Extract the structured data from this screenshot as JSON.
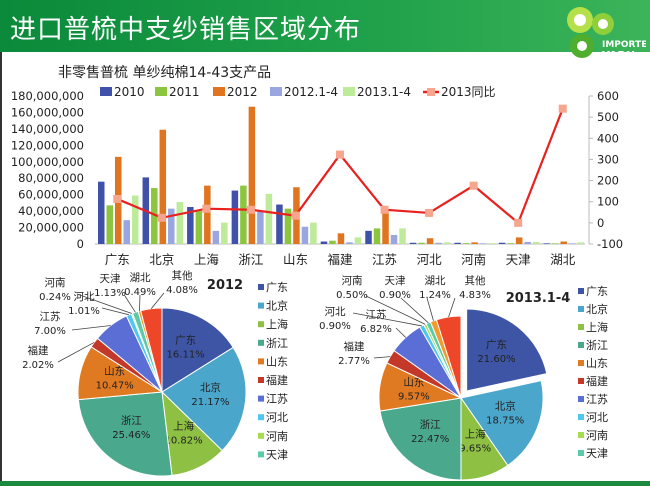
{
  "header": {
    "title": "进口普梳中支纱销售区域分布",
    "logo_text": [
      "IMPORTED",
      "YARN"
    ]
  },
  "chart_data": [
    {
      "type": "bar",
      "title": "非零售普梳 单纱纯棉14-43支产品",
      "categories": [
        "广东",
        "北京",
        "上海",
        "浙江",
        "山东",
        "福建",
        "江苏",
        "河北",
        "河南",
        "天津",
        "湖北"
      ],
      "ylim": [
        0,
        180000000
      ],
      "yticks": [
        "0",
        "20,000,000",
        "40,000,000",
        "60,000,000",
        "80,000,000",
        "100,000,000",
        "120,000,000",
        "140,000,000",
        "160,000,000",
        "180,000,000"
      ],
      "y2lim": [
        -100,
        600
      ],
      "y2ticks": [
        "-100",
        "0",
        "100",
        "200",
        "300",
        "400",
        "500",
        "600"
      ],
      "legend_position": "top",
      "grid": false,
      "series": [
        {
          "name": "2010",
          "kind": "bar",
          "axis": "left",
          "color": "#3f51a8",
          "values": [
            75800000,
            81000000,
            45000000,
            65000000,
            48000000,
            3000000,
            16000000,
            1500000,
            1500000,
            1500000,
            800000
          ]
        },
        {
          "name": "2011",
          "kind": "bar",
          "axis": "left",
          "color": "#8cc63f",
          "values": [
            47000000,
            68000000,
            40000000,
            71000000,
            43000000,
            4000000,
            19000000,
            1500000,
            1000000,
            1000000,
            800000
          ]
        },
        {
          "name": "2012",
          "kind": "bar",
          "axis": "left",
          "color": "#e0741f",
          "values": [
            106000000,
            139000000,
            71000000,
            167000000,
            69000000,
            13000000,
            42000000,
            7000000,
            2000000,
            8000000,
            3000000
          ]
        },
        {
          "name": "2012.1-4",
          "kind": "bar",
          "axis": "left",
          "color": "#9aa6e0",
          "values": [
            29000000,
            43000000,
            16000000,
            40000000,
            21000000,
            2000000,
            11000000,
            1500000,
            800000,
            2500000,
            800000
          ]
        },
        {
          "name": "2013.1-4",
          "kind": "bar",
          "axis": "left",
          "color": "#bdeb9a",
          "values": [
            59000000,
            51000000,
            26000000,
            61000000,
            26000000,
            8000000,
            19000000,
            2000000,
            1000000,
            2500000,
            2000000
          ]
        },
        {
          "name": "2013同比",
          "kind": "line",
          "axis": "right",
          "color": "#e8201e",
          "marker_color": "#f7a58c",
          "values": [
            113,
            24,
            67,
            62,
            34,
            323,
            62,
            47,
            176,
            0,
            540
          ]
        }
      ]
    },
    {
      "type": "pie",
      "title": "2012",
      "legend_position": "right",
      "legend_visible": [
        "广东",
        "北京",
        "上海",
        "浙江",
        "山东",
        "福建",
        "江苏",
        "河北",
        "河南",
        "天津"
      ],
      "slices": [
        {
          "label": "广东",
          "value": 16.11,
          "text": "16.11%",
          "color": "#3e55a5"
        },
        {
          "label": "北京",
          "value": 21.17,
          "text": "21.17%",
          "color": "#4ba6cc"
        },
        {
          "label": "上海",
          "value": 10.82,
          "text": "10.82%",
          "color": "#8dc043"
        },
        {
          "label": "浙江",
          "value": 25.46,
          "text": "25.46%",
          "color": "#4aa98c"
        },
        {
          "label": "山东",
          "value": 10.47,
          "text": "10.47%",
          "color": "#e07a22"
        },
        {
          "label": "福建",
          "value": 2.02,
          "text": "2.02%",
          "color": "#c4382a"
        },
        {
          "label": "江苏",
          "value": 7.0,
          "text": "7.00%",
          "color": "#5a6ed6"
        },
        {
          "label": "河北",
          "value": 1.01,
          "text": "1.01%",
          "color": "#4fc8f0"
        },
        {
          "label": "河南",
          "value": 0.24,
          "text": "0.24%",
          "color": "#a6dc50"
        },
        {
          "label": "天津",
          "value": 1.13,
          "text": "1.13%",
          "color": "#5ccaa8"
        },
        {
          "label": "湖北",
          "value": 0.49,
          "text": "0.49%",
          "color": "#f39a2c"
        },
        {
          "label": "其他",
          "value": 4.08,
          "text": "4.08%",
          "color": "#ee4628"
        }
      ]
    },
    {
      "type": "pie",
      "title": "2013.1-4",
      "legend_position": "right",
      "exploded": "广东",
      "legend_visible": [
        "广东",
        "北京",
        "上海",
        "浙江",
        "山东",
        "福建",
        "江苏",
        "河北",
        "河南",
        "天津"
      ],
      "slices": [
        {
          "label": "广东",
          "value": 21.6,
          "text": "21.60%",
          "color": "#3e55a5"
        },
        {
          "label": "北京",
          "value": 18.75,
          "text": "18.75%",
          "color": "#4ba6cc"
        },
        {
          "label": "上海",
          "value": 9.65,
          "text": "9.65%",
          "color": "#8dc043"
        },
        {
          "label": "浙江",
          "value": 22.47,
          "text": "22.47%",
          "color": "#4aa98c"
        },
        {
          "label": "山东",
          "value": 9.57,
          "text": "9.57%",
          "color": "#e07a22"
        },
        {
          "label": "福建",
          "value": 2.77,
          "text": "2.77%",
          "color": "#c4382a"
        },
        {
          "label": "江苏",
          "value": 6.82,
          "text": "6.82%",
          "color": "#5a6ed6"
        },
        {
          "label": "河北",
          "value": 0.9,
          "text": "0.90%",
          "color": "#4fc8f0"
        },
        {
          "label": "河南",
          "value": 0.5,
          "text": "0.50%",
          "color": "#a6dc50"
        },
        {
          "label": "天津",
          "value": 0.9,
          "text": "0.90%",
          "color": "#5ccaa8"
        },
        {
          "label": "湖北",
          "value": 1.24,
          "text": "1.24%",
          "color": "#f39a2c"
        },
        {
          "label": "其他",
          "value": 4.83,
          "text": "4.83%",
          "color": "#ee4628"
        }
      ]
    }
  ]
}
